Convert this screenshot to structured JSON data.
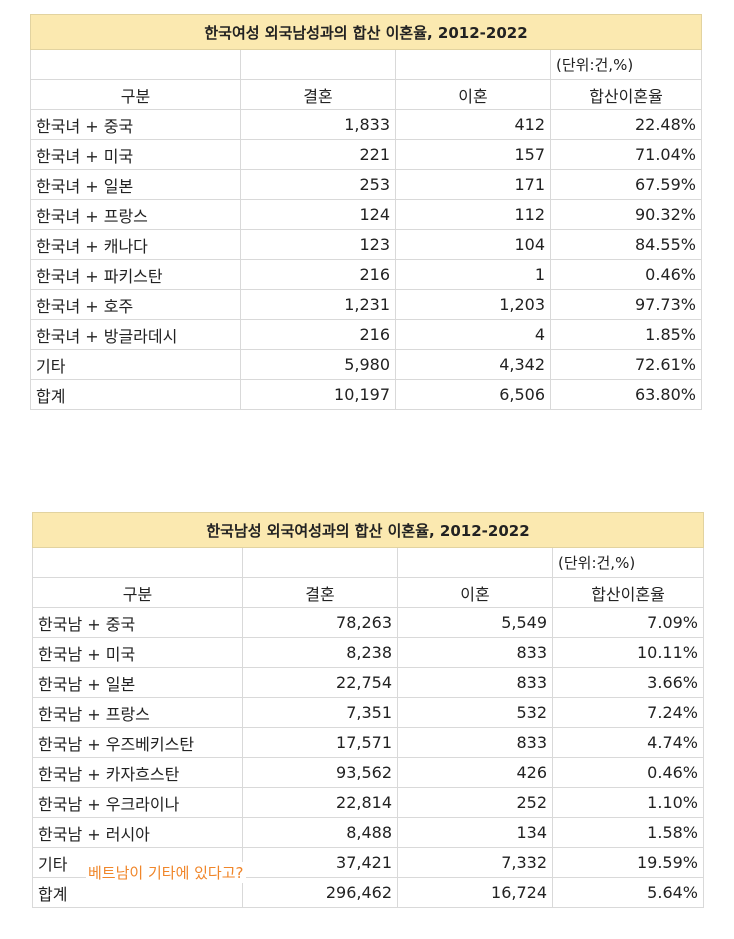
{
  "table1": {
    "title": "한국여성 외국남성과의 합산 이혼율, 2012-2022",
    "unit": "(단위:건,%)",
    "headers": [
      "구분",
      "결혼",
      "이혼",
      "합산이혼율"
    ],
    "rows": [
      [
        "한국녀 + 중국",
        "1,833",
        "412",
        "22.48%"
      ],
      [
        "한국녀 +  미국",
        "221",
        "157",
        "71.04%"
      ],
      [
        "한국녀 + 일본",
        "253",
        "171",
        "67.59%"
      ],
      [
        "한국녀 + 프랑스",
        "124",
        "112",
        "90.32%"
      ],
      [
        "한국녀 + 캐나다",
        "123",
        "104",
        "84.55%"
      ],
      [
        "한국녀 + 파키스탄",
        "216",
        "1",
        "0.46%"
      ],
      [
        "한국녀 + 호주",
        "1,231",
        "1,203",
        "97.73%"
      ],
      [
        "한국녀 + 방글라데시",
        "216",
        "4",
        "1.85%"
      ],
      [
        "기타",
        "5,980",
        "4,342",
        "72.61%"
      ],
      [
        "합계",
        "10,197",
        "6,506",
        "63.80%"
      ]
    ]
  },
  "table2": {
    "title": "한국남성 외국여성과의 합산 이혼율, 2012-2022",
    "unit": "(단위:건,%)",
    "headers": [
      "구분",
      "결혼",
      "이혼",
      "합산이혼율"
    ],
    "rows": [
      [
        "한국남 + 중국",
        "78,263",
        "5,549",
        "7.09%"
      ],
      [
        "한국남 + 미국",
        "8,238",
        "833",
        "10.11%"
      ],
      [
        "한국남 + 일본",
        "22,754",
        "833",
        "3.66%"
      ],
      [
        "한국남 + 프랑스",
        "7,351",
        "532",
        "7.24%"
      ],
      [
        "한국남 + 우즈베키스탄",
        "17,571",
        "833",
        "4.74%"
      ],
      [
        "한국남 + 카자흐스탄",
        "93,562",
        "426",
        "0.46%"
      ],
      [
        "한국남 + 우크라이나",
        "22,814",
        "252",
        "1.10%"
      ],
      [
        "한국남 + 러시아",
        "8,488",
        "134",
        "1.58%"
      ],
      [
        "기타",
        "37,421",
        "7,332",
        "19.59%"
      ],
      [
        "합계",
        "296,462",
        "16,724",
        "5.64%"
      ]
    ]
  },
  "annotation": "베트남이 기타에 있다고?"
}
